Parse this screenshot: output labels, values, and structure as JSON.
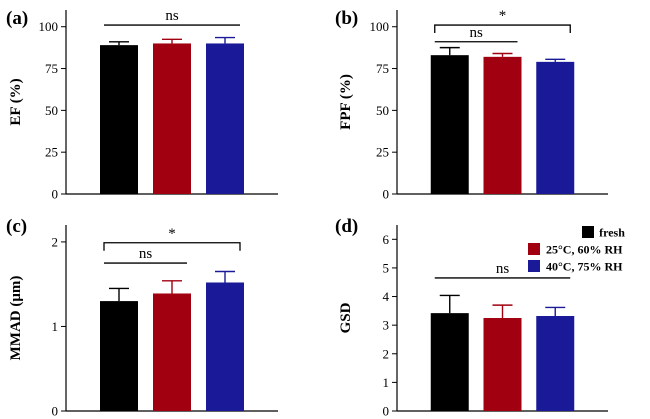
{
  "colors": {
    "fresh": "#000000",
    "c25": "#a00010",
    "c40": "#1a1a99"
  },
  "legend": {
    "items": [
      {
        "label": "fresh",
        "color": "#000000"
      },
      {
        "label": "25°C,  60% RH",
        "color": "#a00010"
      },
      {
        "label": "40°C,  75% RH",
        "color": "#1a1a99"
      }
    ]
  },
  "chart_data": [
    {
      "panel": "(a)",
      "type": "bar",
      "ylabel": "EF (%)",
      "ylim": [
        0,
        110
      ],
      "yticks": [
        0,
        25,
        50,
        75,
        100
      ],
      "categories": [
        "fresh",
        "25°C, 60% RH",
        "40°C, 75% RH"
      ],
      "values": [
        89,
        90,
        90
      ],
      "errors": [
        2,
        2.5,
        3.5
      ],
      "annotations": [
        {
          "label": "ns",
          "from": 0,
          "to": 2,
          "y": 101,
          "bracket": false
        }
      ]
    },
    {
      "panel": "(b)",
      "type": "bar",
      "ylabel": "FPF (%)",
      "ylim": [
        0,
        110
      ],
      "yticks": [
        0,
        25,
        50,
        75,
        100
      ],
      "categories": [
        "fresh",
        "25°C, 60% RH",
        "40°C, 75% RH"
      ],
      "values": [
        83,
        82,
        79
      ],
      "errors": [
        4.5,
        2,
        1.5
      ],
      "annotations": [
        {
          "label": "ns",
          "from": 0,
          "to": 1,
          "y": 91,
          "bracket": false
        },
        {
          "label": "*",
          "from": 0,
          "to": 2,
          "y": 101,
          "bracket": true
        }
      ]
    },
    {
      "panel": "(c)",
      "type": "bar",
      "ylabel": "MMAD (μm)",
      "ylim": [
        0,
        2.2
      ],
      "yticks": [
        0,
        1,
        2
      ],
      "categories": [
        "fresh",
        "25°C, 60% RH",
        "40°C, 75% RH"
      ],
      "values": [
        1.3,
        1.39,
        1.52
      ],
      "errors": [
        0.15,
        0.15,
        0.13
      ],
      "annotations": [
        {
          "label": "ns",
          "from": 0,
          "to": 1,
          "y": 1.75,
          "bracket": false
        },
        {
          "label": "*",
          "from": 0,
          "to": 2,
          "y": 1.99,
          "bracket": true
        }
      ]
    },
    {
      "panel": "(d)",
      "type": "bar",
      "ylabel": "GSD",
      "ylim": [
        0,
        6.5
      ],
      "yticks": [
        0,
        1,
        2,
        3,
        4,
        5,
        6
      ],
      "categories": [
        "fresh",
        "25°C, 60% RH",
        "40°C, 75% RH"
      ],
      "values": [
        3.42,
        3.25,
        3.32
      ],
      "errors": [
        0.62,
        0.45,
        0.3
      ],
      "annotations": [
        {
          "label": "ns",
          "from": 0,
          "to": 2,
          "y": 4.65,
          "bracket": false
        }
      ]
    }
  ]
}
